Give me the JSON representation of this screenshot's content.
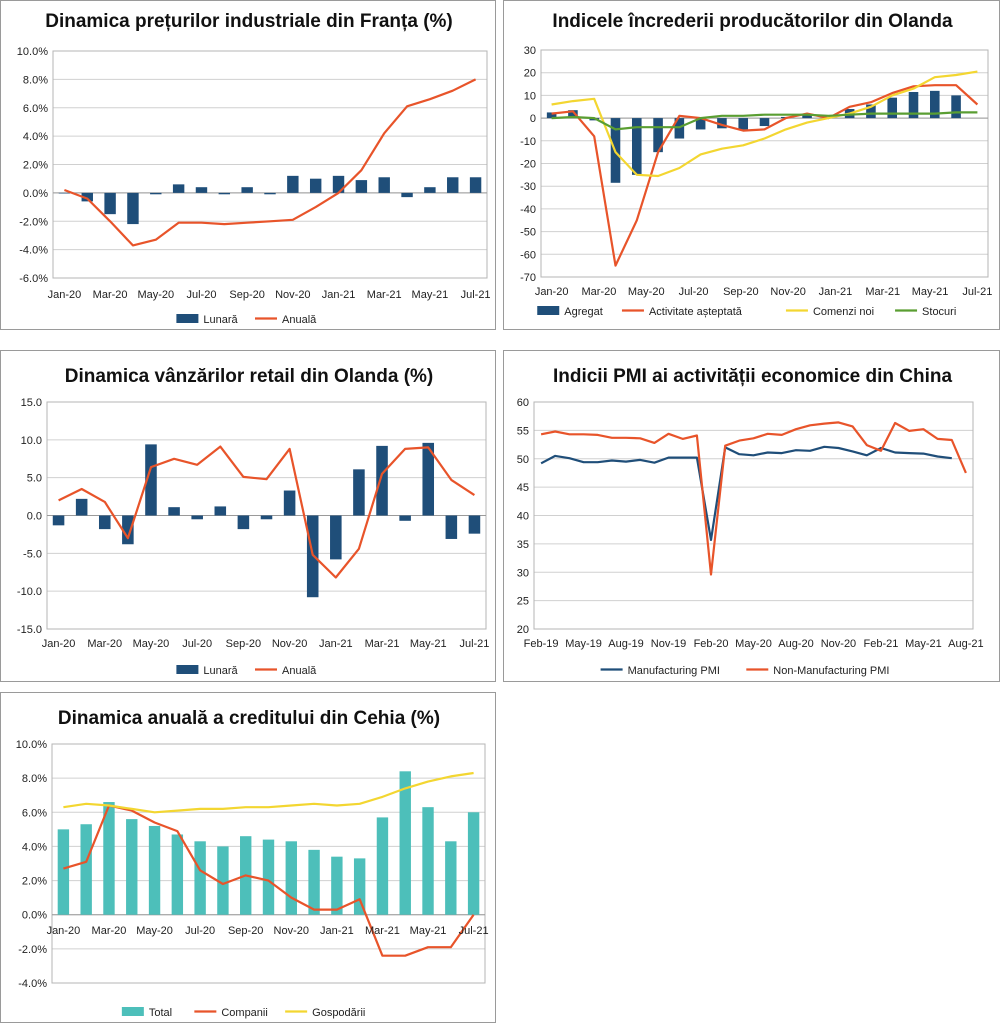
{
  "colors": {
    "navy": "#1f4e79",
    "orange": "#e8542a",
    "yellow": "#f3d631",
    "green": "#5a9e32",
    "teal": "#4dbfba",
    "grid": "#d0d0d0"
  },
  "chart_data": [
    {
      "id": "c1",
      "type": "bar+line",
      "title": "Dinamica prețurilor industriale din Franța (%)",
      "xlabels": [
        "Jan-20",
        "Mar-20",
        "May-20",
        "Jul-20",
        "Sep-20",
        "Nov-20",
        "Jan-21",
        "Mar-21",
        "May-21",
        "Jul-21"
      ],
      "ylim": [
        -6,
        10
      ],
      "ystep": 2,
      "ytick_labels": [
        "-6.0%",
        "-4.0%",
        "-2.0%",
        "0.0%",
        "2.0%",
        "4.0%",
        "6.0%",
        "8.0%",
        "10.0%"
      ],
      "series": [
        {
          "name": "Lunară",
          "kind": "bar",
          "color": "#1f4e79",
          "values": [
            0.0,
            -0.6,
            -1.5,
            -2.2,
            -0.1,
            0.6,
            0.4,
            -0.1,
            0.4,
            -0.1,
            1.2,
            1.0,
            1.2,
            0.9,
            1.1,
            -0.3,
            0.4,
            1.1,
            1.1
          ]
        },
        {
          "name": "Anuală",
          "kind": "line",
          "color": "#e8542a",
          "values": [
            0.2,
            -0.4,
            -2.0,
            -3.7,
            -3.3,
            -2.1,
            -2.1,
            -2.2,
            -2.1,
            -2.0,
            -1.9,
            -1.0,
            0.0,
            1.6,
            4.2,
            6.1,
            6.6,
            7.2,
            8.0
          ]
        }
      ]
    },
    {
      "id": "c2",
      "type": "bar+line",
      "title": "Indicele încrederii producătorilor din Olanda",
      "xlabels": [
        "Jan-20",
        "Mar-20",
        "May-20",
        "Jul-20",
        "Sep-20",
        "Nov-20",
        "Jan-21",
        "Mar-21",
        "May-21",
        "Jul-21"
      ],
      "ylim": [
        -70,
        30
      ],
      "ystep": 10,
      "ytick_labels": [
        "-70",
        "-60",
        "-50",
        "-40",
        "-30",
        "-20",
        "-10",
        "0",
        "10",
        "20",
        "30"
      ],
      "series": [
        {
          "name": "Agregat",
          "kind": "bar",
          "color": "#1f4e79",
          "values": [
            2.5,
            3.5,
            -1,
            -28.5,
            -25,
            -15,
            -9,
            -5,
            -4.5,
            -5,
            -3.5,
            0.5,
            2,
            0.5,
            4,
            6,
            9,
            11.5,
            12,
            10
          ]
        },
        {
          "name": "Activitate așteptată",
          "kind": "line",
          "color": "#e8542a",
          "values": [
            2,
            3,
            -8,
            -65,
            -45,
            -15,
            1,
            0,
            -3,
            -5.5,
            -5,
            0,
            2,
            0,
            5,
            7,
            11,
            14,
            14.5,
            14.5,
            6
          ]
        },
        {
          "name": "Comenzi noi",
          "kind": "line",
          "color": "#f3d631",
          "values": [
            6,
            7.5,
            8.5,
            -15,
            -25,
            -25.5,
            -22,
            -16,
            -13.5,
            -12,
            -9,
            -5,
            -2,
            0,
            2,
            5,
            10,
            13,
            18,
            19,
            20.5
          ]
        },
        {
          "name": "Stocuri",
          "kind": "line",
          "color": "#5a9e32",
          "values": [
            0,
            0.5,
            0,
            -5,
            -4,
            -4,
            -4,
            0,
            1,
            1,
            1.5,
            1.5,
            1.5,
            1,
            1.5,
            2,
            2,
            2,
            2,
            2.5,
            2.5
          ]
        }
      ]
    },
    {
      "id": "c3",
      "type": "bar+line",
      "title": "Dinamica vânzărilor retail din Olanda (%)",
      "xlabels": [
        "Jan-20",
        "Mar-20",
        "May-20",
        "Jul-20",
        "Sep-20",
        "Nov-20",
        "Jan-21",
        "Mar-21",
        "May-21",
        "Jul-21"
      ],
      "ylim": [
        -15,
        15
      ],
      "ystep": 5,
      "ytick_labels": [
        "-15.0",
        "-10.0",
        "-5.0",
        "0.0",
        "5.0",
        "10.0",
        "15.0"
      ],
      "series": [
        {
          "name": "Lunară",
          "kind": "bar",
          "color": "#1f4e79",
          "values": [
            -1.3,
            2.2,
            -1.8,
            -3.8,
            9.4,
            1.1,
            -0.5,
            1.2,
            -1.8,
            -0.5,
            3.3,
            -10.8,
            -5.8,
            6.1,
            9.2,
            -0.7,
            9.6,
            -3.1,
            -2.4
          ]
        },
        {
          "name": "Anuală",
          "kind": "line",
          "color": "#e8542a",
          "values": [
            2.0,
            3.5,
            1.8,
            -3.0,
            6.4,
            7.5,
            6.7,
            9.1,
            5.1,
            4.8,
            8.8,
            -5.2,
            -8.2,
            -4.4,
            5.5,
            8.8,
            9.0,
            4.7,
            2.7
          ]
        }
      ]
    },
    {
      "id": "c4",
      "type": "line",
      "title": "Indicii PMI ai activității economice din China",
      "xlabels": [
        "Feb-19",
        "May-19",
        "Aug-19",
        "Nov-19",
        "Feb-20",
        "May-20",
        "Aug-20",
        "Nov-20",
        "Feb-21",
        "May-21",
        "Aug-21"
      ],
      "ylim": [
        20,
        60
      ],
      "ystep": 5,
      "ytick_labels": [
        "20",
        "25",
        "30",
        "35",
        "40",
        "45",
        "50",
        "55",
        "60"
      ],
      "series": [
        {
          "name": "Manufacturing PMI",
          "kind": "line",
          "color": "#1f4e79",
          "values": [
            49.2,
            50.5,
            50.1,
            49.4,
            49.4,
            49.7,
            49.5,
            49.8,
            49.3,
            50.2,
            50.2,
            50.2,
            35.7,
            52.0,
            50.8,
            50.6,
            51.1,
            51.0,
            51.5,
            51.4,
            52.1,
            51.9,
            51.3,
            50.6,
            51.9,
            51.1,
            51.0,
            50.9,
            50.4,
            50.1
          ]
        },
        {
          "name": "Non-Manufacturing PMI",
          "kind": "line",
          "color": "#e8542a",
          "values": [
            54.3,
            54.8,
            54.3,
            54.3,
            54.2,
            53.7,
            53.7,
            53.6,
            52.8,
            54.4,
            53.5,
            54.1,
            29.6,
            52.3,
            53.2,
            53.6,
            54.4,
            54.2,
            55.2,
            55.9,
            56.2,
            56.4,
            55.7,
            52.4,
            51.4,
            56.3,
            54.9,
            55.2,
            53.5,
            53.3,
            47.5
          ]
        }
      ]
    },
    {
      "id": "c5",
      "type": "bar+line",
      "title": "Dinamica anuală a creditului din Cehia (%)",
      "xlabels": [
        "Jan-20",
        "Mar-20",
        "May-20",
        "Jul-20",
        "Sep-20",
        "Nov-20",
        "Jan-21",
        "Mar-21",
        "May-21",
        "Jul-21"
      ],
      "ylim": [
        -4,
        10
      ],
      "ystep": 2,
      "ytick_labels": [
        "-4.0%",
        "-2.0%",
        "0.0%",
        "2.0%",
        "4.0%",
        "6.0%",
        "8.0%",
        "10.0%"
      ],
      "series": [
        {
          "name": "Total",
          "kind": "bar",
          "color": "#4dbfba",
          "values": [
            5.0,
            5.3,
            6.6,
            5.6,
            5.2,
            4.7,
            4.3,
            4.0,
            4.6,
            4.4,
            4.3,
            3.8,
            3.4,
            3.3,
            5.7,
            8.4,
            6.3,
            4.3,
            6.0
          ]
        },
        {
          "name": "Companii",
          "kind": "line",
          "color": "#e8542a",
          "values": [
            2.7,
            3.1,
            6.4,
            6.1,
            5.4,
            4.9,
            2.6,
            1.8,
            2.3,
            2.0,
            1.0,
            0.3,
            0.3,
            0.9,
            -2.4,
            -2.4,
            -1.9,
            -1.9,
            0.0
          ]
        },
        {
          "name": "Gospodării",
          "kind": "line",
          "color": "#f3d631",
          "values": [
            6.3,
            6.5,
            6.4,
            6.2,
            6.0,
            6.1,
            6.2,
            6.2,
            6.3,
            6.3,
            6.4,
            6.5,
            6.4,
            6.5,
            6.9,
            7.4,
            7.8,
            8.1,
            8.3
          ]
        }
      ]
    }
  ]
}
